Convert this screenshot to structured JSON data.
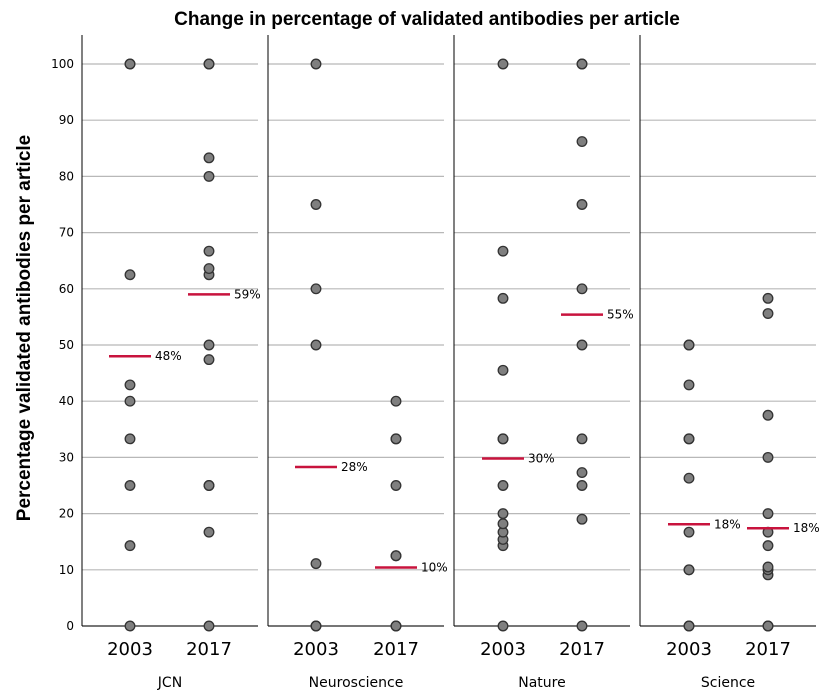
{
  "chart_data": {
    "type": "scatter",
    "title": "Change in percentage of validated antibodies per article",
    "ylabel": "Percentage validated antibodies per article",
    "ylim": [
      0,
      105
    ],
    "yticks": [
      0,
      10,
      20,
      30,
      40,
      50,
      60,
      70,
      80,
      90,
      100
    ],
    "grid": "horizontal",
    "panels": [
      {
        "name": "JCN",
        "categories": [
          "2003",
          "2017"
        ],
        "points": [
          [
            0,
            14.3,
            25,
            33.3,
            40,
            42.9,
            62.5,
            100,
            100
          ],
          [
            0,
            16.7,
            25,
            25,
            47.4,
            50,
            62.5,
            63.6,
            66.7,
            80,
            83.3,
            100,
            100
          ]
        ],
        "means": [
          48,
          59
        ],
        "mean_labels": [
          "48%",
          "59%"
        ]
      },
      {
        "name": "Neuroscience",
        "categories": [
          "2003",
          "2017"
        ],
        "points": [
          [
            0,
            0,
            11.1,
            50,
            60,
            75,
            100
          ],
          [
            0,
            0,
            12.5,
            12.5,
            25,
            33.3,
            33.3,
            40
          ]
        ],
        "means": [
          28.3,
          10.4
        ],
        "mean_labels": [
          "28%",
          "10%"
        ]
      },
      {
        "name": "Nature",
        "categories": [
          "2003",
          "2017"
        ],
        "points": [
          [
            0,
            14.3,
            15.4,
            16.7,
            18.2,
            20,
            25,
            33.3,
            33.3,
            45.5,
            58.3,
            66.7,
            100
          ],
          [
            0,
            19,
            25,
            27.3,
            33.3,
            50,
            60,
            75,
            86.2,
            100,
            100
          ]
        ],
        "means": [
          29.8,
          55.4
        ],
        "mean_labels": [
          "30%",
          "55%"
        ]
      },
      {
        "name": "Science",
        "categories": [
          "2003",
          "2017"
        ],
        "points": [
          [
            0,
            0,
            10,
            10,
            16.7,
            26.3,
            33.3,
            33.3,
            42.9,
            50,
            50
          ],
          [
            0,
            0,
            9.1,
            10,
            10.5,
            14.3,
            16.7,
            20,
            30,
            37.5,
            55.6,
            58.3
          ]
        ],
        "means": [
          18.1,
          17.4
        ],
        "mean_labels": [
          "18%",
          "18%"
        ]
      }
    ]
  }
}
